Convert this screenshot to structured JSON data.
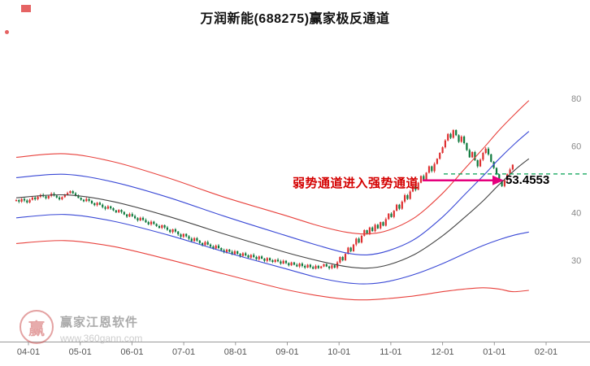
{
  "title": "万润新能(688275)赢家极反通道",
  "watermark": {
    "name": "赢家江恩软件",
    "url": "www.360gann.com",
    "logo_char": "赢"
  },
  "chart_data": {
    "type": "candlestick",
    "title": "万润新能(688275)赢家极反通道",
    "symbol": "万润新能",
    "code": "688275",
    "indicator": "赢家极反通道",
    "x_labels": [
      "04-01",
      "05-01",
      "06-01",
      "07-01",
      "08-01",
      "09-01",
      "10-01",
      "11-01",
      "12-01",
      "01-01",
      "02-01"
    ],
    "y_ticks": [
      80,
      60,
      40,
      30
    ],
    "y_scale": "log",
    "signal": {
      "text": "弱势通道进入强势通道",
      "value": "53.4553"
    },
    "target_line": {
      "price": 50.6,
      "color": "#00a050"
    },
    "arrow": {
      "price": 48.7,
      "color": "#e5007d"
    },
    "colors": {
      "up": "#df3031",
      "down": "#0e7a3d",
      "channel_red": "#e8413c",
      "channel_blue": "#3a49d6",
      "channel_mid": "#444444"
    },
    "closes": [
      43.2,
      42.8,
      43.5,
      43.1,
      42.6,
      43.3,
      43.9,
      43.4,
      44.1,
      44.6,
      44.2,
      43.7,
      44.3,
      44.9,
      44.4,
      43.9,
      43.4,
      44.0,
      44.6,
      45.1,
      45.6,
      45.0,
      44.4,
      43.8,
      43.3,
      42.9,
      43.5,
      43.0,
      42.4,
      41.9,
      42.5,
      42.0,
      41.4,
      41.0,
      41.6,
      41.1,
      40.6,
      40.1,
      40.7,
      40.2,
      39.6,
      39.1,
      39.7,
      39.2,
      38.7,
      38.2,
      38.8,
      38.3,
      37.8,
      37.3,
      37.9,
      37.4,
      36.9,
      36.5,
      37.1,
      36.6,
      36.1,
      35.6,
      36.2,
      35.7,
      35.1,
      34.6,
      35.2,
      34.7,
      34.2,
      33.7,
      34.3,
      33.8,
      33.3,
      32.9,
      33.5,
      33.0,
      32.6,
      32.2,
      32.8,
      32.3,
      31.9,
      31.5,
      32.0,
      31.6,
      31.1,
      31.7,
      31.2,
      30.8,
      31.3,
      30.9,
      30.5,
      31.0,
      30.6,
      30.2,
      30.7,
      30.3,
      29.9,
      30.4,
      30.0,
      29.7,
      30.1,
      29.8,
      29.4,
      29.9,
      29.5,
      29.1,
      29.6,
      29.2,
      28.9,
      29.4,
      29.0,
      28.7,
      29.2,
      28.8,
      28.5,
      29.0,
      28.6,
      28.9,
      29.3,
      28.9,
      28.6,
      29.1,
      28.7,
      29.6,
      30.6,
      30.0,
      31.2,
      32.4,
      31.7,
      33.0,
      34.2,
      33.4,
      34.8,
      36.0,
      35.2,
      36.6,
      35.8,
      37.2,
      36.4,
      37.8,
      37.0,
      38.5,
      39.8,
      39.0,
      40.5,
      42.0,
      41.0,
      42.8,
      44.5,
      43.5,
      45.5,
      47.2,
      46.0,
      48.0,
      50.0,
      48.8,
      51.0,
      53.0,
      51.5,
      53.8,
      55.5,
      57.5,
      59.5,
      62.0,
      64.5,
      63.0,
      66.0,
      64.0,
      61.5,
      63.5,
      61.0,
      58.5,
      56.0,
      57.8,
      55.0,
      53.0,
      55.2,
      57.5,
      59.0,
      57.0,
      54.5,
      52.5,
      50.5,
      48.5,
      47.0,
      48.8,
      50.5,
      52.0,
      53.5
    ],
    "channel_lines": [
      {
        "name": "upper-red-line",
        "color": "#e8413c",
        "anchors": [
          [
            0,
            56
          ],
          [
            18,
            57.2
          ],
          [
            36,
            54.5
          ],
          [
            56,
            49.5
          ],
          [
            77,
            44
          ],
          [
            99,
            39.5
          ],
          [
            112,
            37
          ],
          [
            122,
            35.6
          ],
          [
            130,
            35.2
          ],
          [
            138,
            36
          ],
          [
            148,
            39
          ],
          [
            158,
            45
          ],
          [
            166,
            52
          ],
          [
            173,
            59
          ],
          [
            179,
            66
          ],
          [
            185,
            73
          ],
          [
            190,
            79
          ]
        ]
      },
      {
        "name": "upper-blue-line",
        "color": "#3a49d6",
        "anchors": [
          [
            0,
            49.5
          ],
          [
            18,
            50.5
          ],
          [
            36,
            48.2
          ],
          [
            56,
            44
          ],
          [
            77,
            39.2
          ],
          [
            99,
            35
          ],
          [
            112,
            32.8
          ],
          [
            122,
            31.4
          ],
          [
            130,
            31
          ],
          [
            138,
            31.8
          ],
          [
            148,
            34.2
          ],
          [
            158,
            39
          ],
          [
            166,
            44.5
          ],
          [
            173,
            50
          ],
          [
            179,
            55.5
          ],
          [
            185,
            61
          ],
          [
            190,
            65.5
          ]
        ]
      },
      {
        "name": "middle-black-line",
        "color": "#444444",
        "anchors": [
          [
            0,
            43.8
          ],
          [
            18,
            44.6
          ],
          [
            36,
            42.8
          ],
          [
            56,
            39.2
          ],
          [
            77,
            35.2
          ],
          [
            99,
            31.6
          ],
          [
            112,
            29.9
          ],
          [
            122,
            28.9
          ],
          [
            130,
            28.6
          ],
          [
            138,
            29.2
          ],
          [
            148,
            31.2
          ],
          [
            158,
            34.8
          ],
          [
            166,
            38.8
          ],
          [
            173,
            43
          ],
          [
            179,
            47.5
          ],
          [
            185,
            52
          ],
          [
            190,
            55.5
          ]
        ]
      },
      {
        "name": "lower-blue-line",
        "color": "#3a49d6",
        "anchors": [
          [
            0,
            38.8
          ],
          [
            18,
            39.6
          ],
          [
            36,
            38
          ],
          [
            56,
            35
          ],
          [
            77,
            31.6
          ],
          [
            99,
            28.6
          ],
          [
            112,
            27
          ],
          [
            122,
            26.2
          ],
          [
            130,
            26
          ],
          [
            138,
            26.4
          ],
          [
            148,
            27.6
          ],
          [
            158,
            29.4
          ],
          [
            166,
            31.2
          ],
          [
            173,
            32.8
          ],
          [
            179,
            34
          ],
          [
            185,
            35
          ],
          [
            190,
            35.6
          ]
        ]
      },
      {
        "name": "lower-red-line",
        "color": "#e8413c",
        "anchors": [
          [
            0,
            33.2
          ],
          [
            18,
            33.8
          ],
          [
            36,
            32.6
          ],
          [
            56,
            30.2
          ],
          [
            77,
            27.6
          ],
          [
            99,
            25.2
          ],
          [
            112,
            24.2
          ],
          [
            122,
            23.7
          ],
          [
            130,
            23.6
          ],
          [
            138,
            23.8
          ],
          [
            148,
            24.2
          ],
          [
            158,
            24.8
          ],
          [
            166,
            25.2
          ],
          [
            173,
            25.4
          ],
          [
            179,
            25.2
          ],
          [
            184,
            24.8
          ],
          [
            190,
            25.0
          ]
        ]
      }
    ]
  }
}
